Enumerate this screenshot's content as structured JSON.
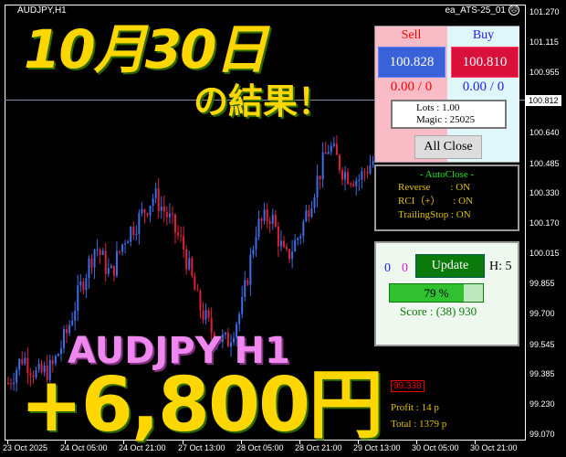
{
  "header": {
    "symbol": "AUDJPY,H1",
    "ea_name": "ea_ATS-25_01",
    "ea_status_icon": "frown-face-icon"
  },
  "overlay": {
    "date_title": "10月30日",
    "result_title": "の結果！",
    "pair_title": "AUDJPY H1",
    "profit_title": "+6,800円"
  },
  "price_axis": [
    "101.270",
    "101.115",
    "100.955",
    "100.640",
    "100.485",
    "100.330",
    "100.170",
    "100.015",
    "99.855",
    "99.700",
    "99.545",
    "99.385",
    "99.230",
    "99.070"
  ],
  "current_price": "100.812",
  "time_axis": [
    "23 Oct 2025",
    "24 Oct 05:00",
    "24 Oct 21:00",
    "27 Oct 13:00",
    "28 Oct 05:00",
    "28 Oct 21:00",
    "29 Oct 13:00",
    "30 Oct 05:00",
    "30 Oct 21:00"
  ],
  "trade_label": "99.338",
  "chart_info": {
    "profit": "Profit : 14 p",
    "total": "Total : 1379 p"
  },
  "price_path": [
    99.34,
    99.48,
    99.38,
    99.42,
    99.6,
    99.85,
    100.06,
    99.9,
    100.1,
    100.2,
    100.32,
    100.2,
    100.05,
    99.76,
    99.6,
    99.55,
    99.73,
    100.15,
    100.22,
    99.98,
    100.12,
    100.36,
    100.58,
    100.44,
    100.4,
    100.5
  ],
  "colors": {
    "bull": "#3a6ee8",
    "bear": "#e0203a",
    "accent": "#ffd700"
  },
  "trade_panel": {
    "sell_label": "Sell",
    "buy_label": "Buy",
    "sell_price": "100.828",
    "buy_price": "100.810",
    "sell_pos": "0.00 / 0",
    "buy_pos": "0.00 / 0",
    "lots": "Lots   : 1.00",
    "magic": "Magic : 25025",
    "all_close": "All Close"
  },
  "autoclose": {
    "title": "- AutoClose -",
    "reverse": "Reverse        : ON",
    "rci": "RCI（+）     : ON",
    "trailing": "TrailingStop : ON"
  },
  "score_panel": {
    "count_blue": "0",
    "count_magenta": "0",
    "update": "Update",
    "h": "H: 5",
    "progress_text": "79 %",
    "progress": 0.79,
    "score": "Score : (38) 930"
  }
}
